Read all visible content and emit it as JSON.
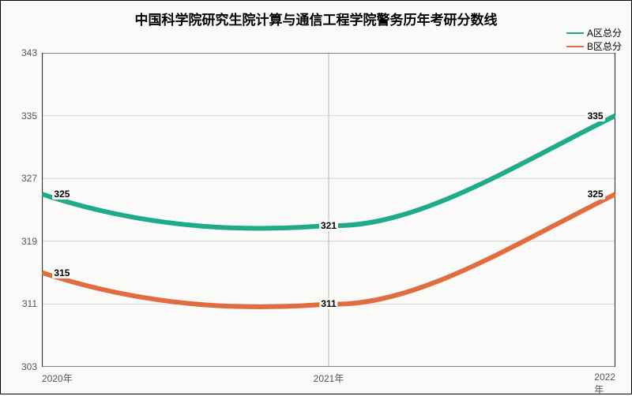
{
  "chart": {
    "type": "line",
    "title": "中国科学院研究生院计算与通信工程学院警务历年考研分数线",
    "title_fontsize": 17,
    "title_fontweight": "bold",
    "background_color": "#fafaf8",
    "border_color": "#000000",
    "grid_color": "#cccccc",
    "axis_line_color": "#333333",
    "label_fontsize": 12,
    "label_color": "#555555",
    "data_label_fontweight": "bold",
    "x": {
      "categories": [
        "2020年",
        "2021年",
        "2022年"
      ],
      "positions": [
        0,
        0.5,
        1
      ]
    },
    "y": {
      "min": 303,
      "max": 343,
      "ticks": [
        303,
        311,
        319,
        327,
        335,
        343
      ]
    },
    "series": [
      {
        "name": "A区总分",
        "color": "#1fab89",
        "values": [
          325,
          321,
          335
        ],
        "line_width": 2,
        "smooth": true
      },
      {
        "name": "B区总分",
        "color": "#e06c3f",
        "values": [
          315,
          311,
          325
        ],
        "line_width": 2,
        "smooth": true
      }
    ],
    "data_label_background": "#fafaf8"
  }
}
